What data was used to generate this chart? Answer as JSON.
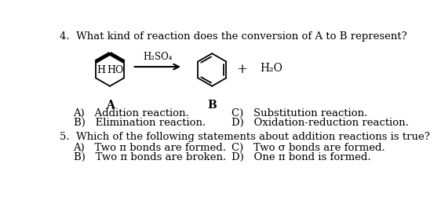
{
  "title_q4": "4.  What kind of reaction does the conversion of A to B represent?",
  "title_q5": "5.  Which of the following statements about addition reactions is true?",
  "q4_options_left": [
    "A)   Addition reaction.",
    "B)   Elimination reaction."
  ],
  "q4_options_right": [
    "C)   Substitution reaction.",
    "D)   Oxidation-reduction reaction."
  ],
  "q5_options_left": [
    "A)   Two π bonds are formed.",
    "B)   Two π bonds are broken."
  ],
  "q5_options_right": [
    "C)   Two σ bonds are formed.",
    "D)   One π bond is formed."
  ],
  "label_A": "A",
  "label_B": "B",
  "reagent": "H₂SO₄",
  "product_label": "H₂O",
  "plus_sign": "+",
  "ho_label": "HO",
  "h_label": "H",
  "bg_color": "#ffffff",
  "text_color": "#000000",
  "font_size_title": 9.5,
  "font_size_options": 9.5,
  "font_size_labels": 8.5,
  "font_size_molec": 9.0
}
